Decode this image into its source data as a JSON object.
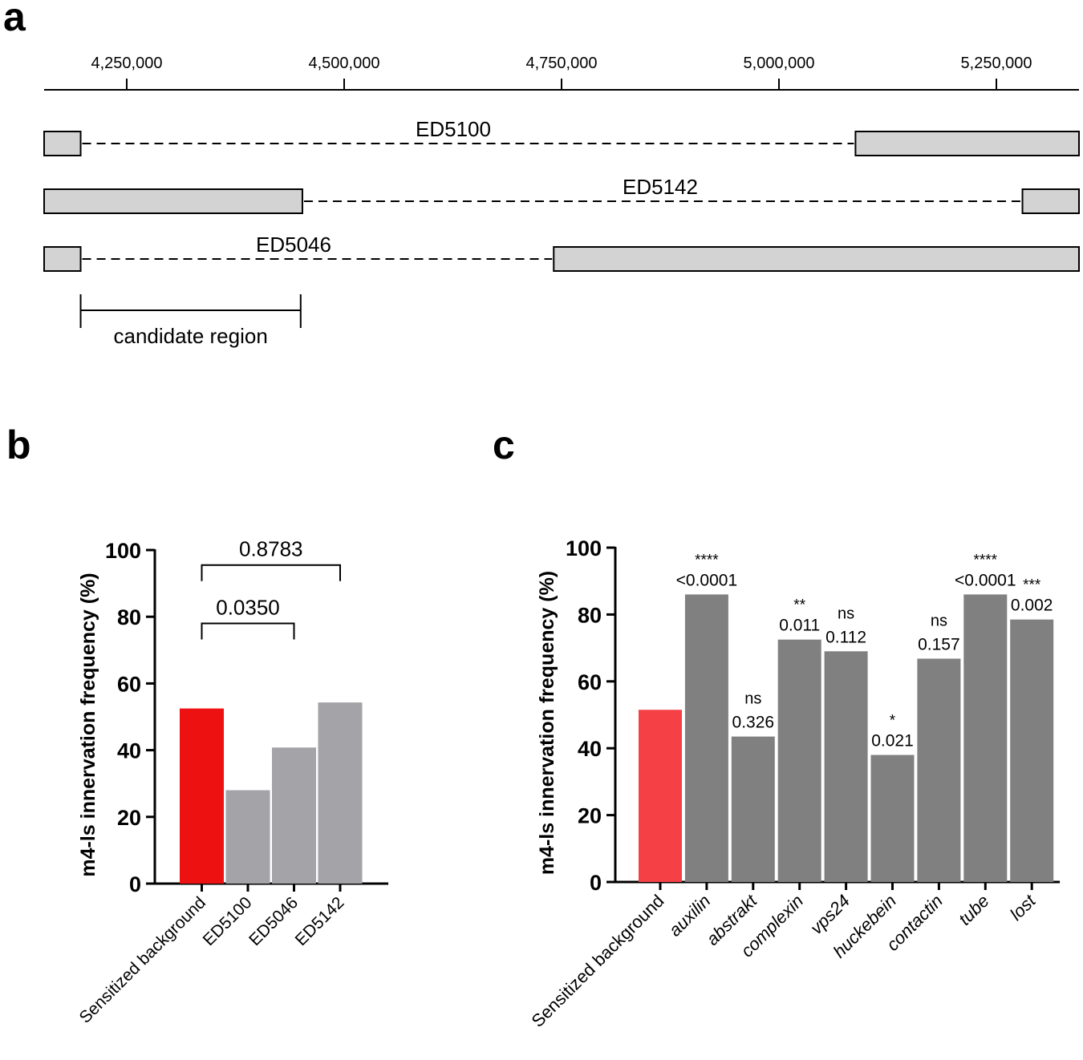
{
  "panels": {
    "a": "a",
    "b": "b",
    "c": "c"
  },
  "chart_data": [
    {
      "panel": "a",
      "type": "deficiency-map",
      "axis": {
        "ticks": [
          4250000,
          4500000,
          4750000,
          5000000,
          5250000
        ],
        "tick_labels": [
          "4,250,000",
          "4,500,000",
          "4,750,000",
          "5,000,000",
          "5,250,000"
        ],
        "range": [
          4155000,
          5345000
        ]
      },
      "deletions": [
        {
          "name": "ED5100",
          "start": 4197000,
          "end": 5088000
        },
        {
          "name": "ED5142",
          "start": 4452000,
          "end": 5280000
        },
        {
          "name": "ED5046",
          "start": 4197000,
          "end": 4741000
        }
      ],
      "candidate_region": {
        "label": "candidate region",
        "start": 4197000,
        "end": 4450000
      }
    },
    {
      "panel": "b",
      "type": "bar",
      "ylabel": "m4-ls innervation frequency (%)",
      "ylim": [
        0,
        100
      ],
      "yticks": [
        0,
        20,
        40,
        60,
        80,
        100
      ],
      "tick_labels": [
        "0",
        "20",
        "40",
        "60",
        "80",
        "100"
      ],
      "categories": [
        "Sensitized background",
        "ED5100",
        "ED5046",
        "ED5142"
      ],
      "values": [
        52.5,
        28.0,
        40.8,
        54.3
      ],
      "colors": [
        "#ee1111",
        "#a3a3a8",
        "#a3a3a8",
        "#a3a3a8"
      ],
      "comparisons": [
        {
          "from": 0,
          "to": 3,
          "label": "0.8783",
          "level": 95.5
        },
        {
          "from": 0,
          "to": 2,
          "label": "0.0350",
          "level": 78
        }
      ]
    },
    {
      "panel": "c",
      "type": "bar",
      "ylabel": "m4-ls innervation frequency (%)",
      "ylim": [
        0,
        100
      ],
      "yticks": [
        0,
        20,
        40,
        60,
        80,
        100
      ],
      "tick_labels": [
        "0",
        "20",
        "40",
        "60",
        "80",
        "100"
      ],
      "categories": [
        "Sensitized background",
        "auxilin",
        "abstrakt",
        "complexin",
        "vps24",
        "huckebein",
        "contactin",
        "tube",
        "lost"
      ],
      "italic": [
        false,
        true,
        true,
        true,
        true,
        true,
        true,
        true,
        true
      ],
      "values": [
        51.5,
        86.0,
        43.5,
        72.5,
        69.0,
        38.0,
        66.8,
        86.0,
        78.5
      ],
      "colors": [
        "#f54045",
        "#808080",
        "#808080",
        "#808080",
        "#808080",
        "#808080",
        "#808080",
        "#808080",
        "#808080"
      ],
      "significance": [
        "",
        "****",
        "ns",
        "**",
        "ns",
        "*",
        "ns",
        "****",
        "***"
      ],
      "pvalues": [
        "",
        "<0.0001",
        "0.326",
        "0.011",
        "0.112",
        "0.021",
        "0.157",
        "<0.0001",
        "0.002"
      ]
    }
  ]
}
